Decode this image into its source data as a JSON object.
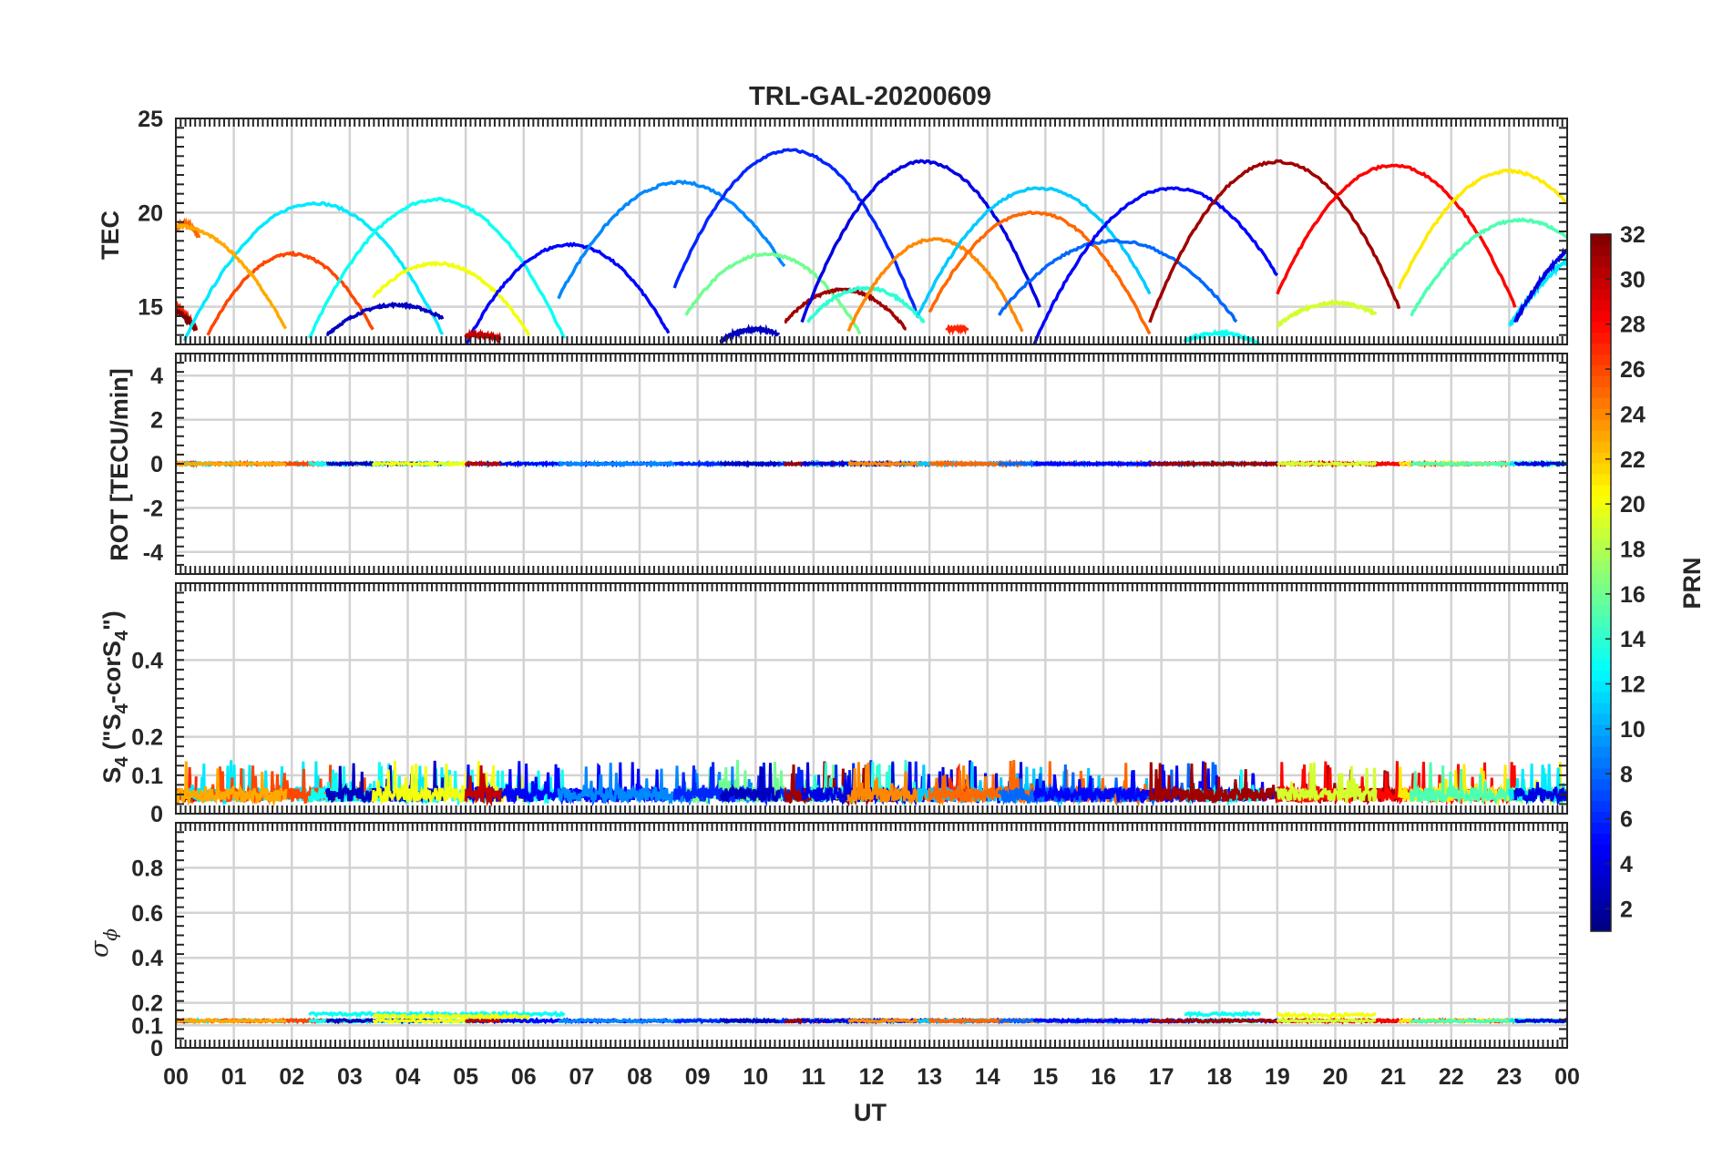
{
  "chart_data": {
    "type": "line",
    "title": "TRL-GAL-20200609",
    "xlabel": "UT",
    "x_range_hours": [
      0,
      24
    ],
    "x_tick_labels": [
      "00",
      "01",
      "02",
      "03",
      "04",
      "05",
      "06",
      "07",
      "08",
      "09",
      "10",
      "11",
      "12",
      "13",
      "14",
      "15",
      "16",
      "17",
      "18",
      "19",
      "20",
      "21",
      "22",
      "23",
      "00"
    ],
    "panels": [
      {
        "id": "tec",
        "ylabel": "TEC",
        "ylim": [
          13,
          25
        ],
        "yticks": [
          15,
          20,
          25
        ],
        "grid": true,
        "arcs": [
          {
            "prn": 25,
            "t0": 0.0,
            "t1": 0.4,
            "peak_t": 0.15,
            "peak": 19.4,
            "edge": 18.7
          },
          {
            "prn": 27,
            "t0": 0.0,
            "t1": 0.35,
            "peak_t": -0.5,
            "peak": 15.8,
            "edge": 13.8
          },
          {
            "prn": 32,
            "t0": 0.0,
            "t1": 0.35,
            "peak_t": -0.4,
            "peak": 15.2,
            "edge": 13.8
          },
          {
            "prn": 12,
            "t0": 0.15,
            "t1": 4.6,
            "peak_t": 2.4,
            "peak": 20.5,
            "edge": 13.2
          },
          {
            "prn": 26,
            "t0": 0.55,
            "t1": 3.4,
            "peak_t": 2.0,
            "peak": 17.8,
            "edge": 13.5
          },
          {
            "prn": 23,
            "t0": -0.4,
            "t1": 1.9,
            "peak_t": 0.0,
            "peak": 19.3,
            "edge": 13.8
          },
          {
            "prn": 13,
            "t0": 2.3,
            "t1": 6.7,
            "peak_t": 4.5,
            "peak": 20.7,
            "edge": 13.3
          },
          {
            "prn": 3,
            "t0": 2.6,
            "t1": 4.6,
            "peak_t": 3.8,
            "peak": 15.1,
            "edge": 13.5
          },
          {
            "prn": 20,
            "t0": 3.4,
            "t1": 6.1,
            "peak_t": 4.5,
            "peak": 17.3,
            "edge": 13.5
          },
          {
            "prn": 5,
            "t0": 5.0,
            "t1": 8.5,
            "peak_t": 6.8,
            "peak": 18.3,
            "edge": 13.0
          },
          {
            "prn": 30,
            "t0": 5.0,
            "t1": 5.6,
            "peak_t": 5.2,
            "peak": 13.5,
            "edge": 13.3
          },
          {
            "prn": 9,
            "t0": 6.6,
            "t1": 10.5,
            "peak_t": 8.7,
            "peak": 21.6,
            "edge": 15.5
          },
          {
            "prn": 16,
            "t0": 8.8,
            "t1": 11.8,
            "peak_t": 10.2,
            "peak": 17.8,
            "edge": 13.6
          },
          {
            "prn": 6,
            "t0": 8.6,
            "t1": 12.8,
            "peak_t": 10.6,
            "peak": 23.3,
            "edge": 14.5
          },
          {
            "prn": 3,
            "t0": 9.4,
            "t1": 10.4,
            "peak_t": 10.0,
            "peak": 13.8,
            "edge": 13.2
          },
          {
            "prn": 31,
            "t0": 10.5,
            "t1": 12.6,
            "peak_t": 11.5,
            "peak": 15.9,
            "edge": 13.8
          },
          {
            "prn": 14,
            "t0": 10.9,
            "t1": 12.9,
            "peak_t": 11.9,
            "peak": 16.0,
            "edge": 14.2
          },
          {
            "prn": 4,
            "t0": 10.8,
            "t1": 14.9,
            "peak_t": 12.9,
            "peak": 22.7,
            "edge": 14.2
          },
          {
            "prn": 24,
            "t0": 11.6,
            "t1": 14.6,
            "peak_t": 13.1,
            "peak": 18.6,
            "edge": 13.7
          },
          {
            "prn": 27,
            "t0": 13.3,
            "t1": 13.65,
            "peak_t": 13.5,
            "peak": 13.8,
            "edge": 13.8
          },
          {
            "prn": 11,
            "t0": 12.8,
            "t1": 16.8,
            "peak_t": 14.9,
            "peak": 21.3,
            "edge": 14.5
          },
          {
            "prn": 25,
            "t0": 13.0,
            "t1": 16.8,
            "peak_t": 14.8,
            "peak": 20.0,
            "edge": 13.5
          },
          {
            "prn": 8,
            "t0": 14.2,
            "t1": 18.3,
            "peak_t": 16.2,
            "peak": 18.5,
            "edge": 14.2
          },
          {
            "prn": 5,
            "t0": 14.8,
            "t1": 19.0,
            "peak_t": 17.2,
            "peak": 21.3,
            "edge": 13.0
          },
          {
            "prn": 13,
            "t0": 17.4,
            "t1": 18.7,
            "peak_t": 18.0,
            "peak": 13.6,
            "edge": 13.0
          },
          {
            "prn": 31,
            "t0": 16.8,
            "t1": 21.1,
            "peak_t": 19.0,
            "peak": 22.7,
            "edge": 14.2
          },
          {
            "prn": 28,
            "t0": 19.0,
            "t1": 23.1,
            "peak_t": 21.0,
            "peak": 22.5,
            "edge": 15.0
          },
          {
            "prn": 19,
            "t0": 19.0,
            "t1": 20.7,
            "peak_t": 20.0,
            "peak": 15.2,
            "edge": 14.0
          },
          {
            "prn": 21,
            "t0": 21.1,
            "t1": 24.0,
            "peak_t": 23.0,
            "peak": 22.2,
            "edge": 16.0
          },
          {
            "prn": 15,
            "t0": 21.3,
            "t1": 24.0,
            "peak_t": 23.2,
            "peak": 19.6,
            "edge": 14.5
          },
          {
            "prn": 12,
            "t0": 23.0,
            "t1": 24.0,
            "peak_t": 25.5,
            "peak": 19.5,
            "edge": 14.0
          },
          {
            "prn": 4,
            "t0": 23.1,
            "t1": 24.0,
            "peak_t": 25.0,
            "peak": 19.5,
            "edge": 14.2
          }
        ]
      },
      {
        "id": "rot",
        "ylabel": "ROT [TECU/min]",
        "ylim": [
          -5,
          5
        ],
        "yticks": [
          -4,
          -2,
          0,
          2,
          4
        ],
        "grid": true,
        "baseline": 0.0,
        "noise": 0.08
      },
      {
        "id": "s4",
        "ylabel_main": "S",
        "ylabel_sub": "4",
        "ylabel_rest": " (\"S",
        "ylabel_sub2": "4",
        "ylabel_mid": "-corS",
        "ylabel_sub3": "4",
        "ylabel_end": "\")",
        "ylim": [
          0,
          0.6
        ],
        "yticks": [
          0,
          0.1,
          0.2,
          0.4
        ],
        "ytick_labels": [
          "0",
          "0.1",
          "0.2",
          "0.4"
        ],
        "grid": true,
        "baseline": 0.05,
        "noise": 0.04
      },
      {
        "id": "sigma_phi",
        "ylabel_greek": "σ",
        "ylabel_sub": "ϕ",
        "ylim": [
          0,
          1
        ],
        "yticks": [
          0,
          0.1,
          0.2,
          0.4,
          0.6,
          0.8
        ],
        "ytick_labels": [
          "0",
          "0.1",
          "0.2",
          "0.4",
          "0.6",
          "0.8"
        ],
        "grid": true,
        "baseline": 0.12,
        "elevated_segments": [
          {
            "prn": 13,
            "t0": 2.3,
            "t1": 6.7,
            "level": 0.15
          },
          {
            "prn": 20,
            "t0": 3.4,
            "t1": 6.1,
            "level": 0.14
          },
          {
            "prn": 13,
            "t0": 17.4,
            "t1": 18.7,
            "level": 0.15
          },
          {
            "prn": 20,
            "t0": 19.0,
            "t1": 20.7,
            "level": 0.145
          }
        ]
      }
    ],
    "colorbar": {
      "label": "PRN",
      "range": [
        1,
        32
      ],
      "tick_labels": [
        "2",
        "4",
        "6",
        "8",
        "10",
        "12",
        "14",
        "16",
        "18",
        "20",
        "22",
        "24",
        "26",
        "28",
        "30",
        "32"
      ],
      "colormap": "jet",
      "placement": "right"
    }
  }
}
